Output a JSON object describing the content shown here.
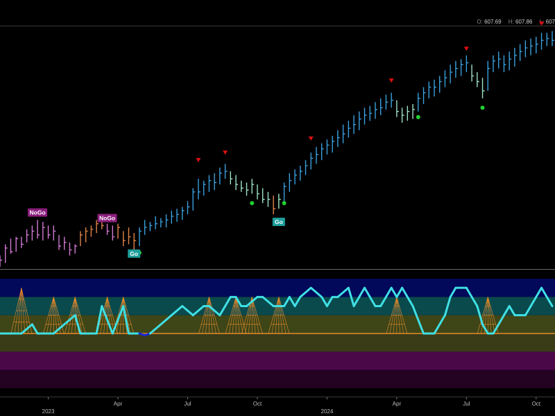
{
  "header": {
    "ohlc": [
      {
        "key": "O:",
        "value": "607.69"
      },
      {
        "key": "H:",
        "value": "607.86"
      },
      {
        "key": "L:",
        "value": "607"
      }
    ]
  },
  "colors": {
    "background": "#000000",
    "go_strong": "#3aa1e0",
    "go_weak": "#9fe3c7",
    "nogo_strong": "#d27ad4",
    "nogo_weak": "#e0854a",
    "neutral": "#b0b0b0",
    "oscillator": "#3fe0e4",
    "oscillator_neg": "#1428d8",
    "zero_line": "#e88a2a",
    "triangle": "#e01010",
    "dot": "#1fd12e",
    "go_label_bg": "#1c9d9a",
    "nogo_label_bg": "#8b1e7c"
  },
  "chart_data": {
    "type": "ohlc-bar",
    "x_ticks": [
      {
        "label": "2023",
        "week": 9
      },
      {
        "label": "Apr",
        "week": 22
      },
      {
        "label": "Jul",
        "week": 35
      },
      {
        "label": "Oct",
        "week": 48
      },
      {
        "label": "2024",
        "week": 61
      },
      {
        "label": "Apr",
        "week": 74
      },
      {
        "label": "Jul",
        "week": 87
      },
      {
        "label": "Oct",
        "week": 100
      }
    ],
    "x_range": [
      0,
      103
    ],
    "price_range": [
      370,
      625
    ],
    "price_series": [
      {
        "color": "nogo_strong",
        "bars": [
          [
            0,
            380,
            368,
            375
          ],
          [
            1,
            392,
            372,
            388
          ],
          [
            2,
            398,
            382,
            384
          ],
          [
            3,
            400,
            384,
            398
          ],
          [
            4,
            400,
            388,
            392
          ],
          [
            5,
            408,
            394,
            402
          ],
          [
            6,
            412,
            396,
            406
          ],
          [
            7,
            418,
            398,
            402
          ],
          [
            8,
            416,
            396,
            410
          ],
          [
            9,
            412,
            398,
            402
          ],
          [
            10,
            412,
            396,
            406
          ],
          [
            11,
            402,
            386,
            390
          ],
          [
            12,
            400,
            386,
            394
          ],
          [
            13,
            394,
            380,
            386
          ],
          [
            14,
            392,
            382,
            390
          ]
        ]
      },
      {
        "color": "nogo_weak",
        "bars": [
          [
            15,
            406,
            390,
            402
          ],
          [
            16,
            410,
            394,
            406
          ],
          [
            17,
            412,
            400,
            408
          ],
          [
            18,
            418,
            404,
            414
          ],
          [
            19,
            420,
            408,
            412
          ]
        ]
      },
      {
        "color": "nogo_strong",
        "bars": [
          [
            20,
            414,
            402,
            406
          ],
          [
            21,
            412,
            396,
            400
          ]
        ]
      },
      {
        "color": "nogo_weak",
        "bars": [
          [
            22,
            414,
            398,
            410
          ],
          [
            23,
            406,
            390,
            396
          ],
          [
            24,
            410,
            392,
            400
          ],
          [
            25,
            404,
            386,
            396
          ]
        ]
      },
      {
        "color": "go_strong",
        "bars": [
          [
            26,
            410,
            390,
            406
          ],
          [
            27,
            418,
            402,
            410
          ],
          [
            28,
            416,
            406,
            412
          ],
          [
            29,
            422,
            408,
            414
          ],
          [
            30,
            420,
            410,
            416
          ],
          [
            31,
            424,
            410,
            418
          ],
          [
            32,
            428,
            414,
            422
          ],
          [
            33,
            430,
            416,
            424
          ],
          [
            34,
            432,
            418,
            428
          ],
          [
            35,
            438,
            424,
            432
          ],
          [
            36,
            452,
            428,
            448
          ],
          [
            37,
            462,
            440,
            448
          ],
          [
            38,
            460,
            444,
            456
          ],
          [
            39,
            466,
            448,
            460
          ],
          [
            40,
            468,
            450,
            458
          ],
          [
            41,
            474,
            456,
            468
          ],
          [
            42,
            478,
            462,
            470
          ]
        ]
      },
      {
        "color": "go_weak",
        "bars": [
          [
            43,
            470,
            456,
            462
          ],
          [
            44,
            466,
            450,
            456
          ],
          [
            45,
            460,
            448,
            452
          ],
          [
            46,
            458,
            444,
            450
          ],
          [
            47,
            462,
            446,
            456
          ]
        ]
      },
      {
        "color": "go_weak",
        "bars": [
          [
            48,
            456,
            440,
            446
          ],
          [
            49,
            452,
            436,
            440
          ],
          [
            50,
            448,
            432,
            440
          ]
        ]
      },
      {
        "color": "nogo_weak",
        "bars": [
          [
            51,
            444,
            424,
            430
          ]
        ]
      },
      {
        "color": "go_weak",
        "bars": [
          [
            52,
            446,
            430,
            440
          ]
        ]
      },
      {
        "color": "go_strong",
        "bars": [
          [
            53,
            458,
            438,
            454
          ],
          [
            54,
            468,
            448,
            460
          ],
          [
            55,
            472,
            456,
            466
          ],
          [
            56,
            476,
            460,
            470
          ],
          [
            57,
            482,
            466,
            476
          ],
          [
            58,
            490,
            472,
            484
          ],
          [
            59,
            496,
            478,
            488
          ],
          [
            60,
            500,
            482,
            494
          ],
          [
            61,
            504,
            488,
            498
          ],
          [
            62,
            508,
            490,
            502
          ],
          [
            63,
            514,
            496,
            506
          ],
          [
            64,
            520,
            500,
            510
          ],
          [
            65,
            524,
            506,
            516
          ],
          [
            66,
            530,
            510,
            520
          ],
          [
            67,
            534,
            514,
            526
          ],
          [
            68,
            538,
            520,
            530
          ],
          [
            69,
            540,
            524,
            532
          ],
          [
            70,
            544,
            526,
            536
          ],
          [
            71,
            548,
            530,
            538
          ],
          [
            72,
            552,
            536,
            544
          ],
          [
            73,
            554,
            538,
            546
          ]
        ]
      },
      {
        "color": "go_weak",
        "bars": [
          [
            74,
            546,
            528,
            534
          ],
          [
            75,
            538,
            522,
            530
          ],
          [
            76,
            540,
            524,
            534
          ],
          [
            77,
            542,
            526,
            536
          ]
        ]
      },
      {
        "color": "go_strong",
        "bars": [
          [
            78,
            554,
            534,
            548
          ],
          [
            79,
            560,
            542,
            554
          ],
          [
            80,
            566,
            548,
            560
          ],
          [
            81,
            568,
            550,
            560
          ],
          [
            82,
            572,
            554,
            566
          ],
          [
            83,
            578,
            560,
            570
          ],
          [
            84,
            584,
            564,
            576
          ],
          [
            85,
            588,
            570,
            580
          ],
          [
            86,
            590,
            572,
            584
          ],
          [
            87,
            594,
            576,
            586
          ]
        ]
      },
      {
        "color": "go_weak",
        "bars": [
          [
            88,
            584,
            566,
            572
          ],
          [
            89,
            576,
            560,
            566
          ],
          [
            90,
            570,
            548,
            556
          ]
        ]
      },
      {
        "color": "go_strong",
        "bars": [
          [
            91,
            588,
            556,
            580
          ],
          [
            92,
            594,
            576,
            588
          ],
          [
            93,
            598,
            580,
            590
          ],
          [
            94,
            594,
            576,
            584
          ],
          [
            95,
            598,
            578,
            590
          ],
          [
            96,
            602,
            582,
            594
          ],
          [
            97,
            606,
            588,
            598
          ],
          [
            98,
            610,
            592,
            602
          ],
          [
            99,
            612,
            594,
            604
          ],
          [
            100,
            614,
            596,
            606
          ],
          [
            101,
            618,
            600,
            610
          ],
          [
            102,
            618,
            604,
            612
          ],
          [
            103,
            620,
            604,
            610
          ]
        ]
      }
    ],
    "markers": {
      "triangles": [
        [
          37,
          482
        ],
        [
          42,
          490
        ],
        [
          58,
          505
        ],
        [
          73,
          567
        ],
        [
          87,
          601
        ],
        [
          101,
          628
        ]
      ],
      "dots": [
        [
          26,
          383
        ],
        [
          47,
          436
        ],
        [
          53,
          436
        ],
        [
          78,
          528
        ],
        [
          90,
          538
        ]
      ],
      "labels": [
        {
          "text": "NoGo",
          "week": 7,
          "price": 426,
          "type": "nogo"
        },
        {
          "text": "NoGo",
          "week": 20,
          "price": 420,
          "type": "nogo"
        },
        {
          "text": "Go",
          "week": 25,
          "price": 382,
          "type": "go"
        },
        {
          "text": "Go",
          "week": 52,
          "price": 416,
          "type": "go"
        }
      ]
    },
    "oscillator": {
      "range": [
        -6,
        6
      ],
      "bands": [
        {
          "from": 4,
          "to": 6,
          "color": "#02085a"
        },
        {
          "from": 2,
          "to": 4,
          "color": "#0a4a4d"
        },
        {
          "from": 0,
          "to": 2,
          "color": "#3e4618"
        },
        {
          "from": -2,
          "to": 0,
          "color": "#3a3c18"
        },
        {
          "from": -4,
          "to": -2,
          "color": "#4a0849"
        },
        {
          "from": -6,
          "to": -4,
          "color": "#240222"
        }
      ],
      "zero": 0,
      "values": [
        [
          0,
          0
        ],
        [
          4,
          0
        ],
        [
          6,
          1
        ],
        [
          7,
          0
        ],
        [
          9,
          0
        ],
        [
          10,
          0
        ],
        [
          12,
          1
        ],
        [
          14,
          2
        ],
        [
          15,
          0
        ],
        [
          18,
          0
        ],
        [
          19,
          3
        ],
        [
          21,
          0
        ],
        [
          23,
          3
        ],
        [
          24,
          0
        ],
        [
          26,
          0
        ],
        [
          27,
          -0.2
        ],
        [
          28,
          0
        ],
        [
          30,
          1
        ],
        [
          32,
          2
        ],
        [
          34,
          3
        ],
        [
          36,
          2
        ],
        [
          38,
          3
        ],
        [
          39,
          3
        ],
        [
          41,
          2
        ],
        [
          42,
          3
        ],
        [
          43,
          4
        ],
        [
          44,
          4
        ],
        [
          45,
          3
        ],
        [
          46,
          3
        ],
        [
          48,
          4
        ],
        [
          49,
          4
        ],
        [
          51,
          3
        ],
        [
          53,
          3
        ],
        [
          54,
          4
        ],
        [
          55,
          3
        ],
        [
          56,
          4
        ],
        [
          58,
          5
        ],
        [
          60,
          4
        ],
        [
          61,
          3
        ],
        [
          62,
          4
        ],
        [
          63,
          4
        ],
        [
          65,
          5
        ],
        [
          66,
          3
        ],
        [
          67,
          4
        ],
        [
          68,
          5
        ],
        [
          69,
          4
        ],
        [
          70,
          3
        ],
        [
          71,
          3
        ],
        [
          72,
          4
        ],
        [
          73,
          5
        ],
        [
          74,
          4
        ],
        [
          75,
          5
        ],
        [
          77,
          3
        ],
        [
          79,
          0
        ],
        [
          81,
          0
        ],
        [
          83,
          2
        ],
        [
          84,
          4
        ],
        [
          85,
          5
        ],
        [
          86,
          5
        ],
        [
          87,
          5
        ],
        [
          88,
          4
        ],
        [
          89,
          3
        ],
        [
          90,
          1
        ],
        [
          91,
          0
        ],
        [
          92,
          0
        ],
        [
          93,
          1
        ],
        [
          94,
          2
        ],
        [
          95,
          3
        ],
        [
          96,
          2
        ],
        [
          97,
          2
        ],
        [
          98,
          2
        ],
        [
          99,
          3
        ],
        [
          100,
          4
        ],
        [
          101,
          5
        ],
        [
          102,
          4
        ],
        [
          103,
          3
        ]
      ],
      "bumps": [
        [
          4,
          5
        ],
        [
          10,
          4
        ],
        [
          14,
          4
        ],
        [
          20,
          4
        ],
        [
          23,
          4
        ],
        [
          39,
          4
        ],
        [
          44,
          4
        ],
        [
          47,
          4
        ],
        [
          52,
          4
        ],
        [
          74,
          4
        ],
        [
          91,
          4
        ]
      ]
    }
  }
}
